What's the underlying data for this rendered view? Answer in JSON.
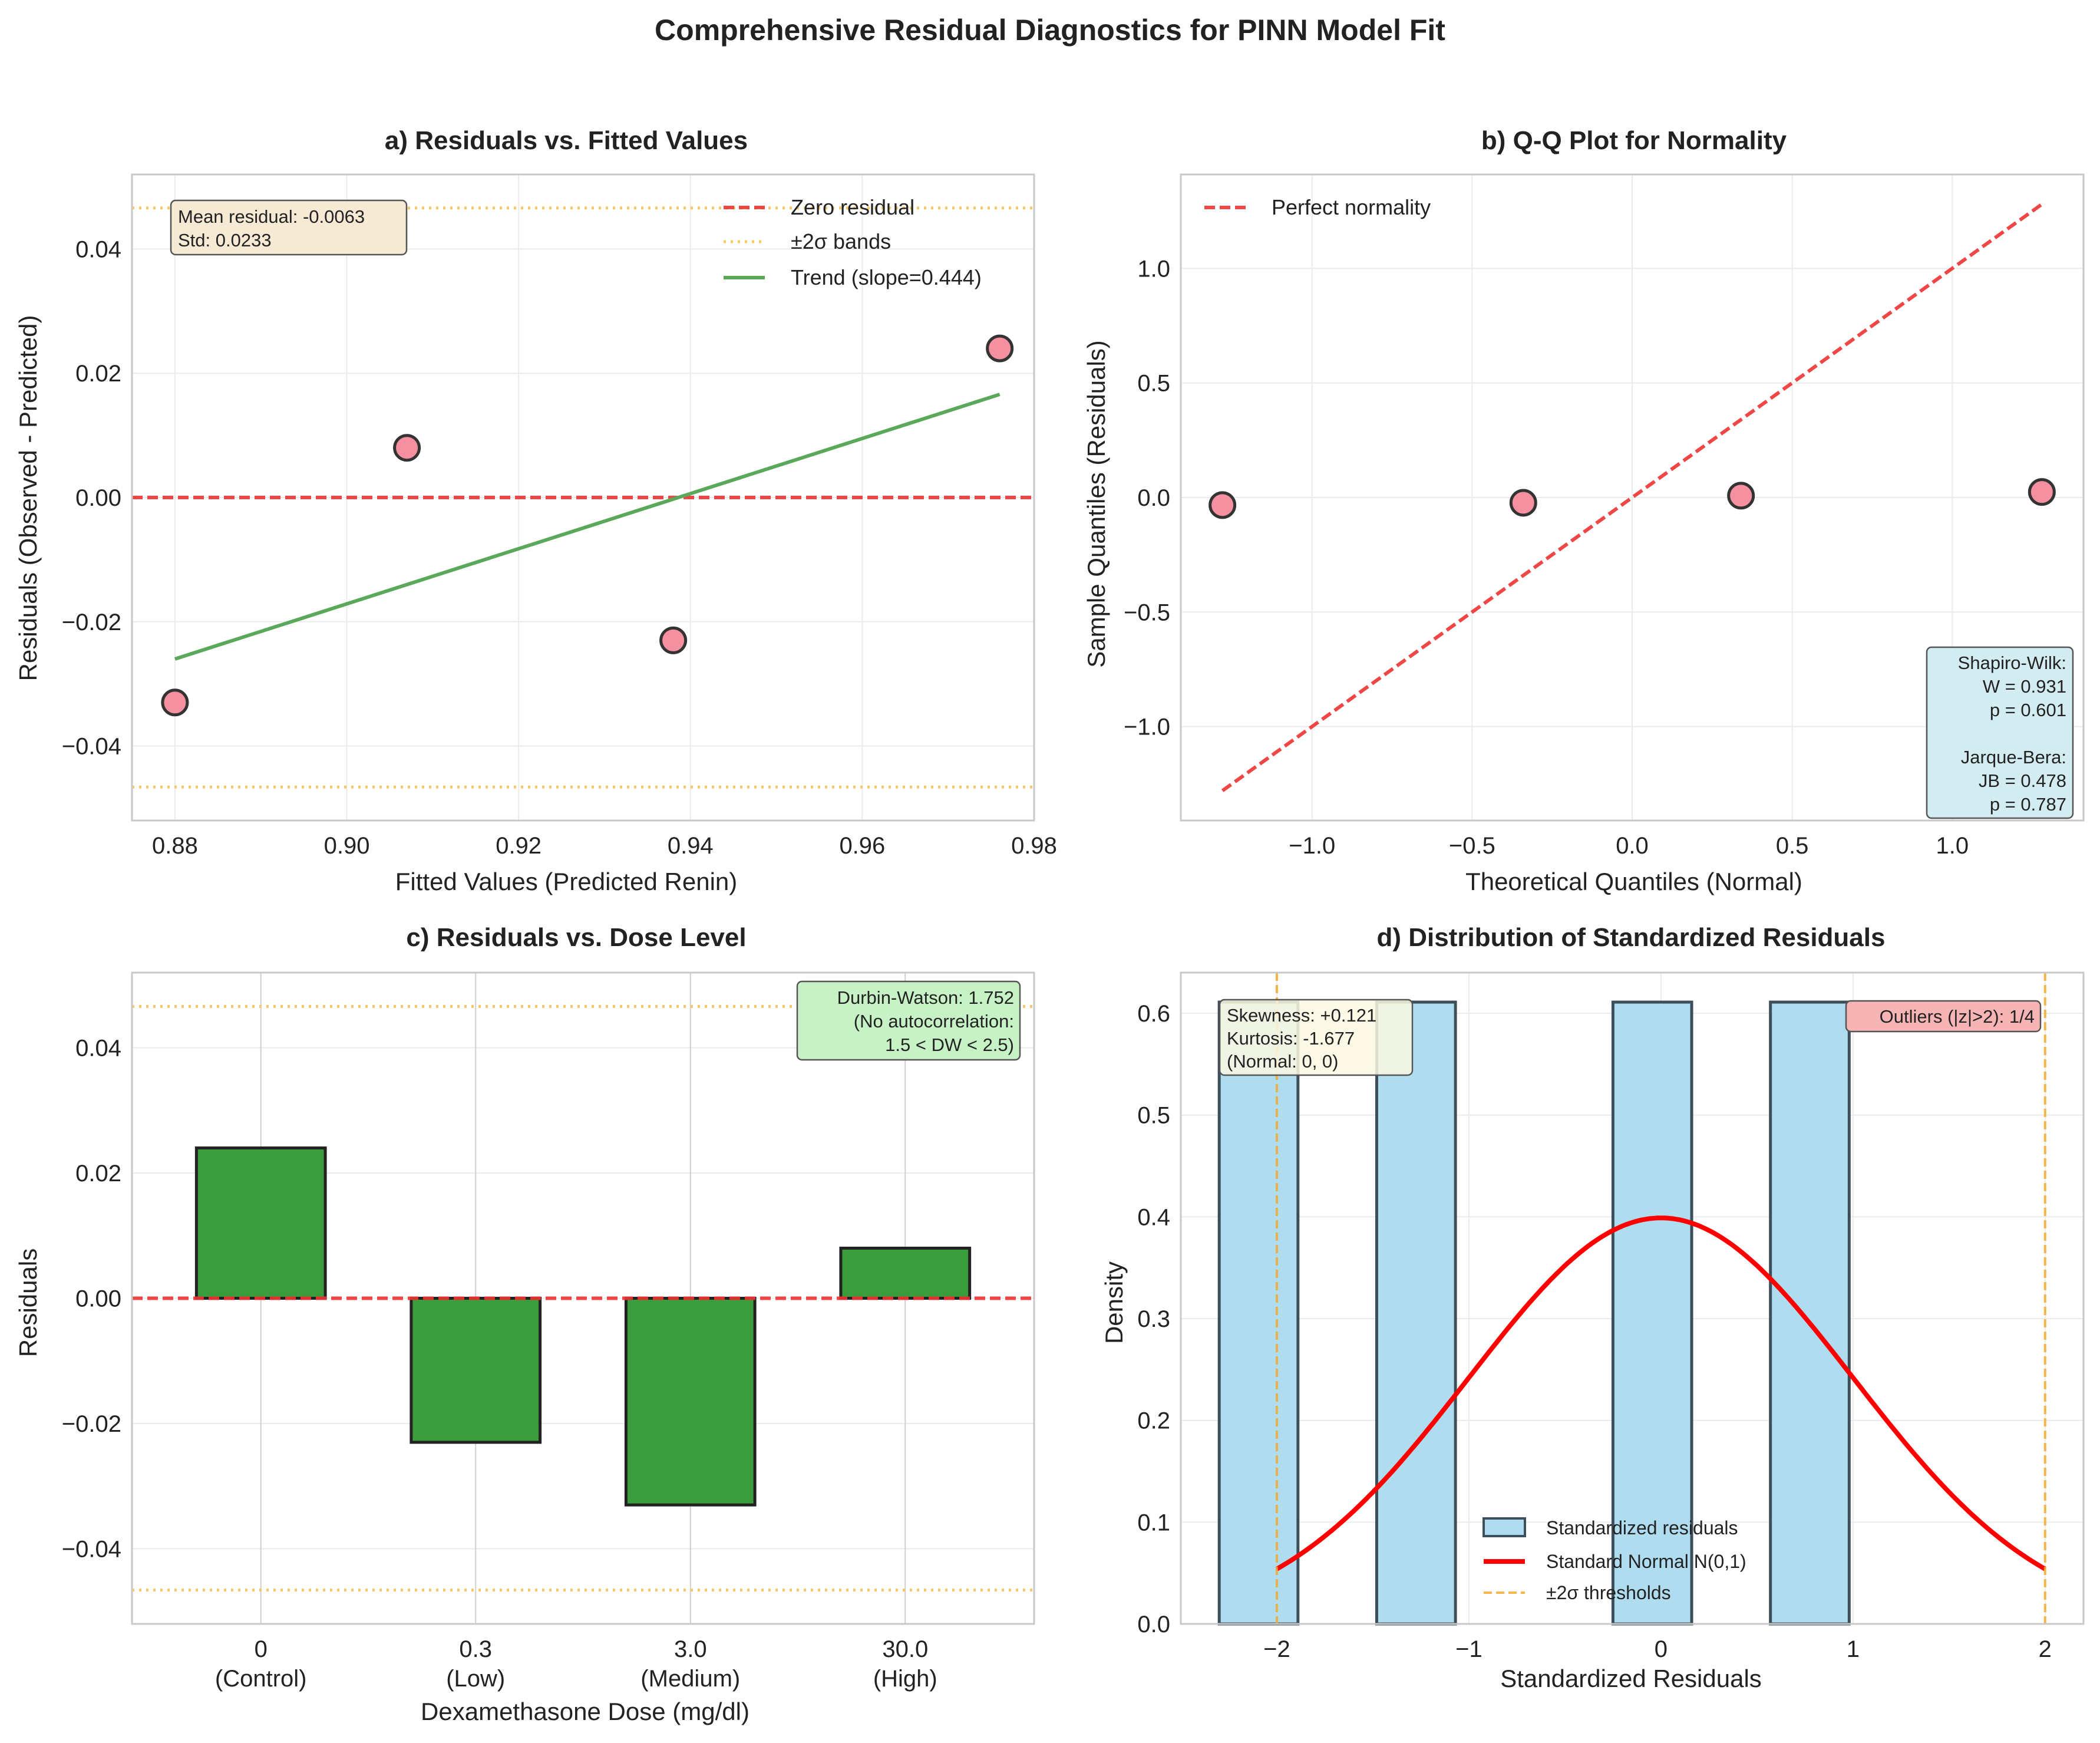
{
  "figure": {
    "suptitle": "Comprehensive Residual Diagnostics for PINN Model Fit"
  },
  "colors": {
    "point_fill": "#f4909f",
    "point_edge": "#333333",
    "zero_line": "#ee3333",
    "sigma_band": "#f7c868",
    "trend": "#5aa85a",
    "bar_green": "#3b9c3b",
    "hist_fill": "#b0dcf0",
    "hist_edge": "#3d4f5a",
    "normal_curve": "#ff0000",
    "threshold": "#f5a623",
    "box_wheat": "#f7ead4",
    "box_blue": "#d3ecf2",
    "box_green": "#c6f2c6",
    "box_red": "#f7b4b4",
    "box_yellow": "#fcf8e3"
  },
  "chart_data": [
    {
      "id": "a",
      "type": "scatter",
      "title": "a) Residuals vs. Fitted Values",
      "xlabel": "Fitted Values (Predicted Renin)",
      "ylabel": "Residuals (Observed - Predicted)",
      "xlim": [
        0.875,
        0.98
      ],
      "ylim": [
        -0.052,
        0.052
      ],
      "xticks": [
        0.88,
        0.9,
        0.92,
        0.94,
        0.96,
        0.98
      ],
      "xtick_labels": [
        "0.88",
        "0.90",
        "0.92",
        "0.94",
        "0.96",
        "0.98"
      ],
      "yticks": [
        -0.04,
        -0.02,
        0.0,
        0.02,
        0.04
      ],
      "ytick_labels": [
        "−0.04",
        "−0.02",
        "0.00",
        "0.02",
        "0.04"
      ],
      "grid": true,
      "points": [
        {
          "x": 0.88,
          "y": -0.033
        },
        {
          "x": 0.907,
          "y": 0.008
        },
        {
          "x": 0.938,
          "y": -0.023
        },
        {
          "x": 0.976,
          "y": 0.024
        }
      ],
      "zero_line": 0,
      "sigma_bands": [
        0.0466,
        -0.0466
      ],
      "trend": {
        "x": [
          0.88,
          0.976
        ],
        "y": [
          -0.026,
          0.0166
        ]
      },
      "legend": {
        "placement": "upper right",
        "entries": [
          "Zero residual",
          "±2σ bands",
          "Trend (slope=0.444)"
        ]
      },
      "annotation": {
        "placement": "upper left",
        "lines": [
          "Mean residual: -0.0063",
          "Std: 0.0233"
        ]
      }
    },
    {
      "id": "b",
      "type": "scatter",
      "title": "b) Q-Q Plot for Normality",
      "xlabel": "Theoretical Quantiles (Normal)",
      "ylabel": "Sample Quantiles (Residuals)",
      "xlim": [
        -1.41,
        1.41
      ],
      "ylim": [
        -1.41,
        1.41
      ],
      "xticks": [
        -1.0,
        -0.5,
        0.0,
        0.5,
        1.0
      ],
      "xtick_labels": [
        "−1.0",
        "−0.5",
        "0.0",
        "0.5",
        "1.0"
      ],
      "yticks": [
        -1.0,
        -0.5,
        0.0,
        0.5,
        1.0
      ],
      "ytick_labels": [
        "−1.0",
        "−0.5",
        "0.0",
        "0.5",
        "1.0"
      ],
      "grid": true,
      "points": [
        {
          "x": -1.28,
          "y": -0.033
        },
        {
          "x": -0.34,
          "y": -0.023
        },
        {
          "x": 0.34,
          "y": 0.008
        },
        {
          "x": 1.28,
          "y": 0.024
        }
      ],
      "reference_line": {
        "x": [
          -1.28,
          1.28
        ],
        "y": [
          -1.28,
          1.28
        ]
      },
      "legend": {
        "placement": "upper left",
        "entries": [
          "Perfect normality"
        ]
      },
      "annotation": {
        "placement": "lower right",
        "lines": [
          "Shapiro-Wilk:",
          "W = 0.931",
          "p = 0.601",
          "",
          "Jarque-Bera:",
          "JB = 0.478",
          "p = 0.787"
        ]
      }
    },
    {
      "id": "c",
      "type": "bar",
      "title": "c) Residuals vs. Dose Level",
      "xlabel": "Dexamethasone Dose (mg/dl)",
      "ylabel": "Residuals",
      "categories": [
        "0\n(Control)",
        "0.3\n(Low)",
        "3.0\n(Medium)",
        "30.0\n(High)"
      ],
      "category_lines": [
        [
          "0",
          "(Control)"
        ],
        [
          "0.3",
          "(Low)"
        ],
        [
          "3.0",
          "(Medium)"
        ],
        [
          "30.0",
          "(High)"
        ]
      ],
      "values": [
        0.024,
        -0.023,
        -0.033,
        0.008
      ],
      "ylim": [
        -0.052,
        0.052
      ],
      "yticks": [
        -0.04,
        -0.02,
        0.0,
        0.02,
        0.04
      ],
      "ytick_labels": [
        "−0.04",
        "−0.02",
        "0.00",
        "0.02",
        "0.04"
      ],
      "grid": true,
      "zero_line": 0,
      "sigma_bands": [
        0.0466,
        -0.0466
      ],
      "annotation": {
        "placement": "upper right",
        "lines": [
          "Durbin-Watson: 1.752",
          "(No autocorrelation:",
          "1.5 < DW < 2.5)"
        ]
      }
    },
    {
      "id": "d",
      "type": "bar",
      "title": "d) Distribution of Standardized Residuals",
      "xlabel": "Standardized Residuals",
      "ylabel": "Density",
      "xlim": [
        -2.5,
        2.2
      ],
      "ylim": [
        0,
        0.64
      ],
      "xticks": [
        -2,
        -1,
        0,
        1,
        2
      ],
      "xtick_labels": [
        "−2",
        "−1",
        "0",
        "1",
        "2"
      ],
      "yticks": [
        0.0,
        0.1,
        0.2,
        0.3,
        0.4,
        0.5,
        0.6
      ],
      "ytick_labels": [
        "0.0",
        "0.1",
        "0.2",
        "0.3",
        "0.4",
        "0.5",
        "0.6"
      ],
      "grid": true,
      "histogram": [
        {
          "x0": -2.3,
          "x1": -1.89,
          "density": 0.611
        },
        {
          "x0": -1.48,
          "x1": -1.07,
          "density": 0.611
        },
        {
          "x0": -0.25,
          "x1": 0.16,
          "density": 0.611
        },
        {
          "x0": 0.57,
          "x1": 0.98,
          "density": 0.611
        }
      ],
      "normal_curve": {
        "x_range": [
          -2,
          2
        ],
        "mean": 0,
        "std": 1
      },
      "thresholds": [
        -2,
        2
      ],
      "legend": {
        "placement": "lower center",
        "entries": [
          "Standardized residuals",
          "Standard Normal N(0,1)",
          "±2σ thresholds"
        ]
      },
      "annotation_left": {
        "placement": "upper left",
        "lines": [
          "Skewness: +0.121",
          "Kurtosis: -1.677",
          "(Normal: 0, 0)"
        ]
      },
      "annotation_right": {
        "placement": "upper right",
        "lines": [
          "Outliers (|z|>2): 1/4"
        ]
      }
    }
  ]
}
